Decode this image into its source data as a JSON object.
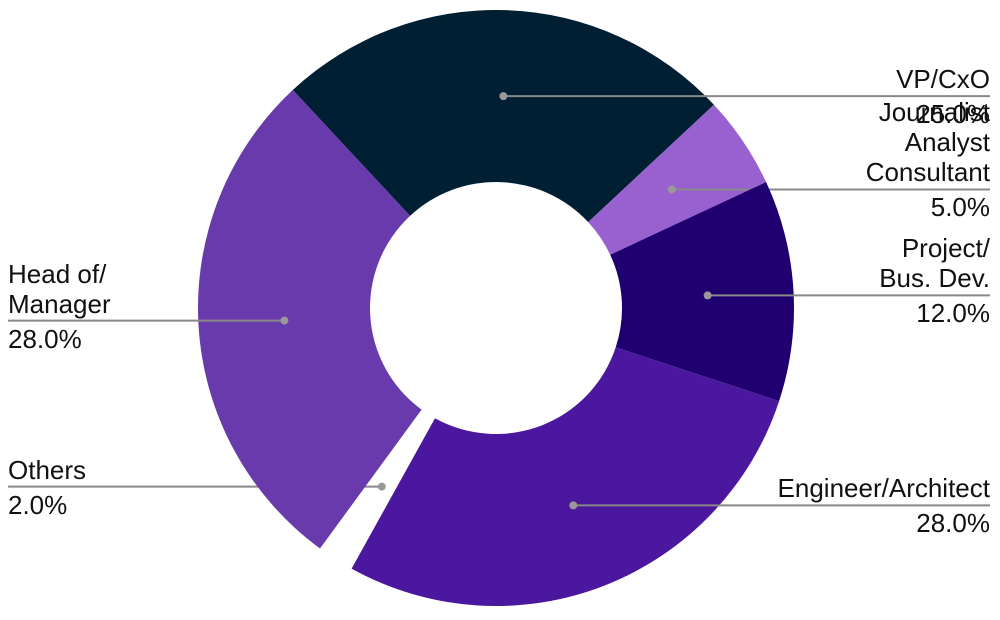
{
  "chart_data": {
    "type": "donut",
    "categories": [
      "VP/CxO",
      "Journalist\nAnalyst\nConsultant",
      "Project/\nBus. Dev.",
      "Engineer/Architect",
      "Others",
      "Head of/\nManager"
    ],
    "values": [
      25,
      5,
      12,
      28,
      2,
      28
    ],
    "value_labels": [
      "25.0%",
      "5.0%",
      "12.0%",
      "28.0%",
      "2.0%",
      "28.0%"
    ],
    "colors": [
      "#011f33",
      "#9961d0",
      "#200070",
      "#4b179e",
      "#ffffff",
      "#683aab"
    ]
  }
}
